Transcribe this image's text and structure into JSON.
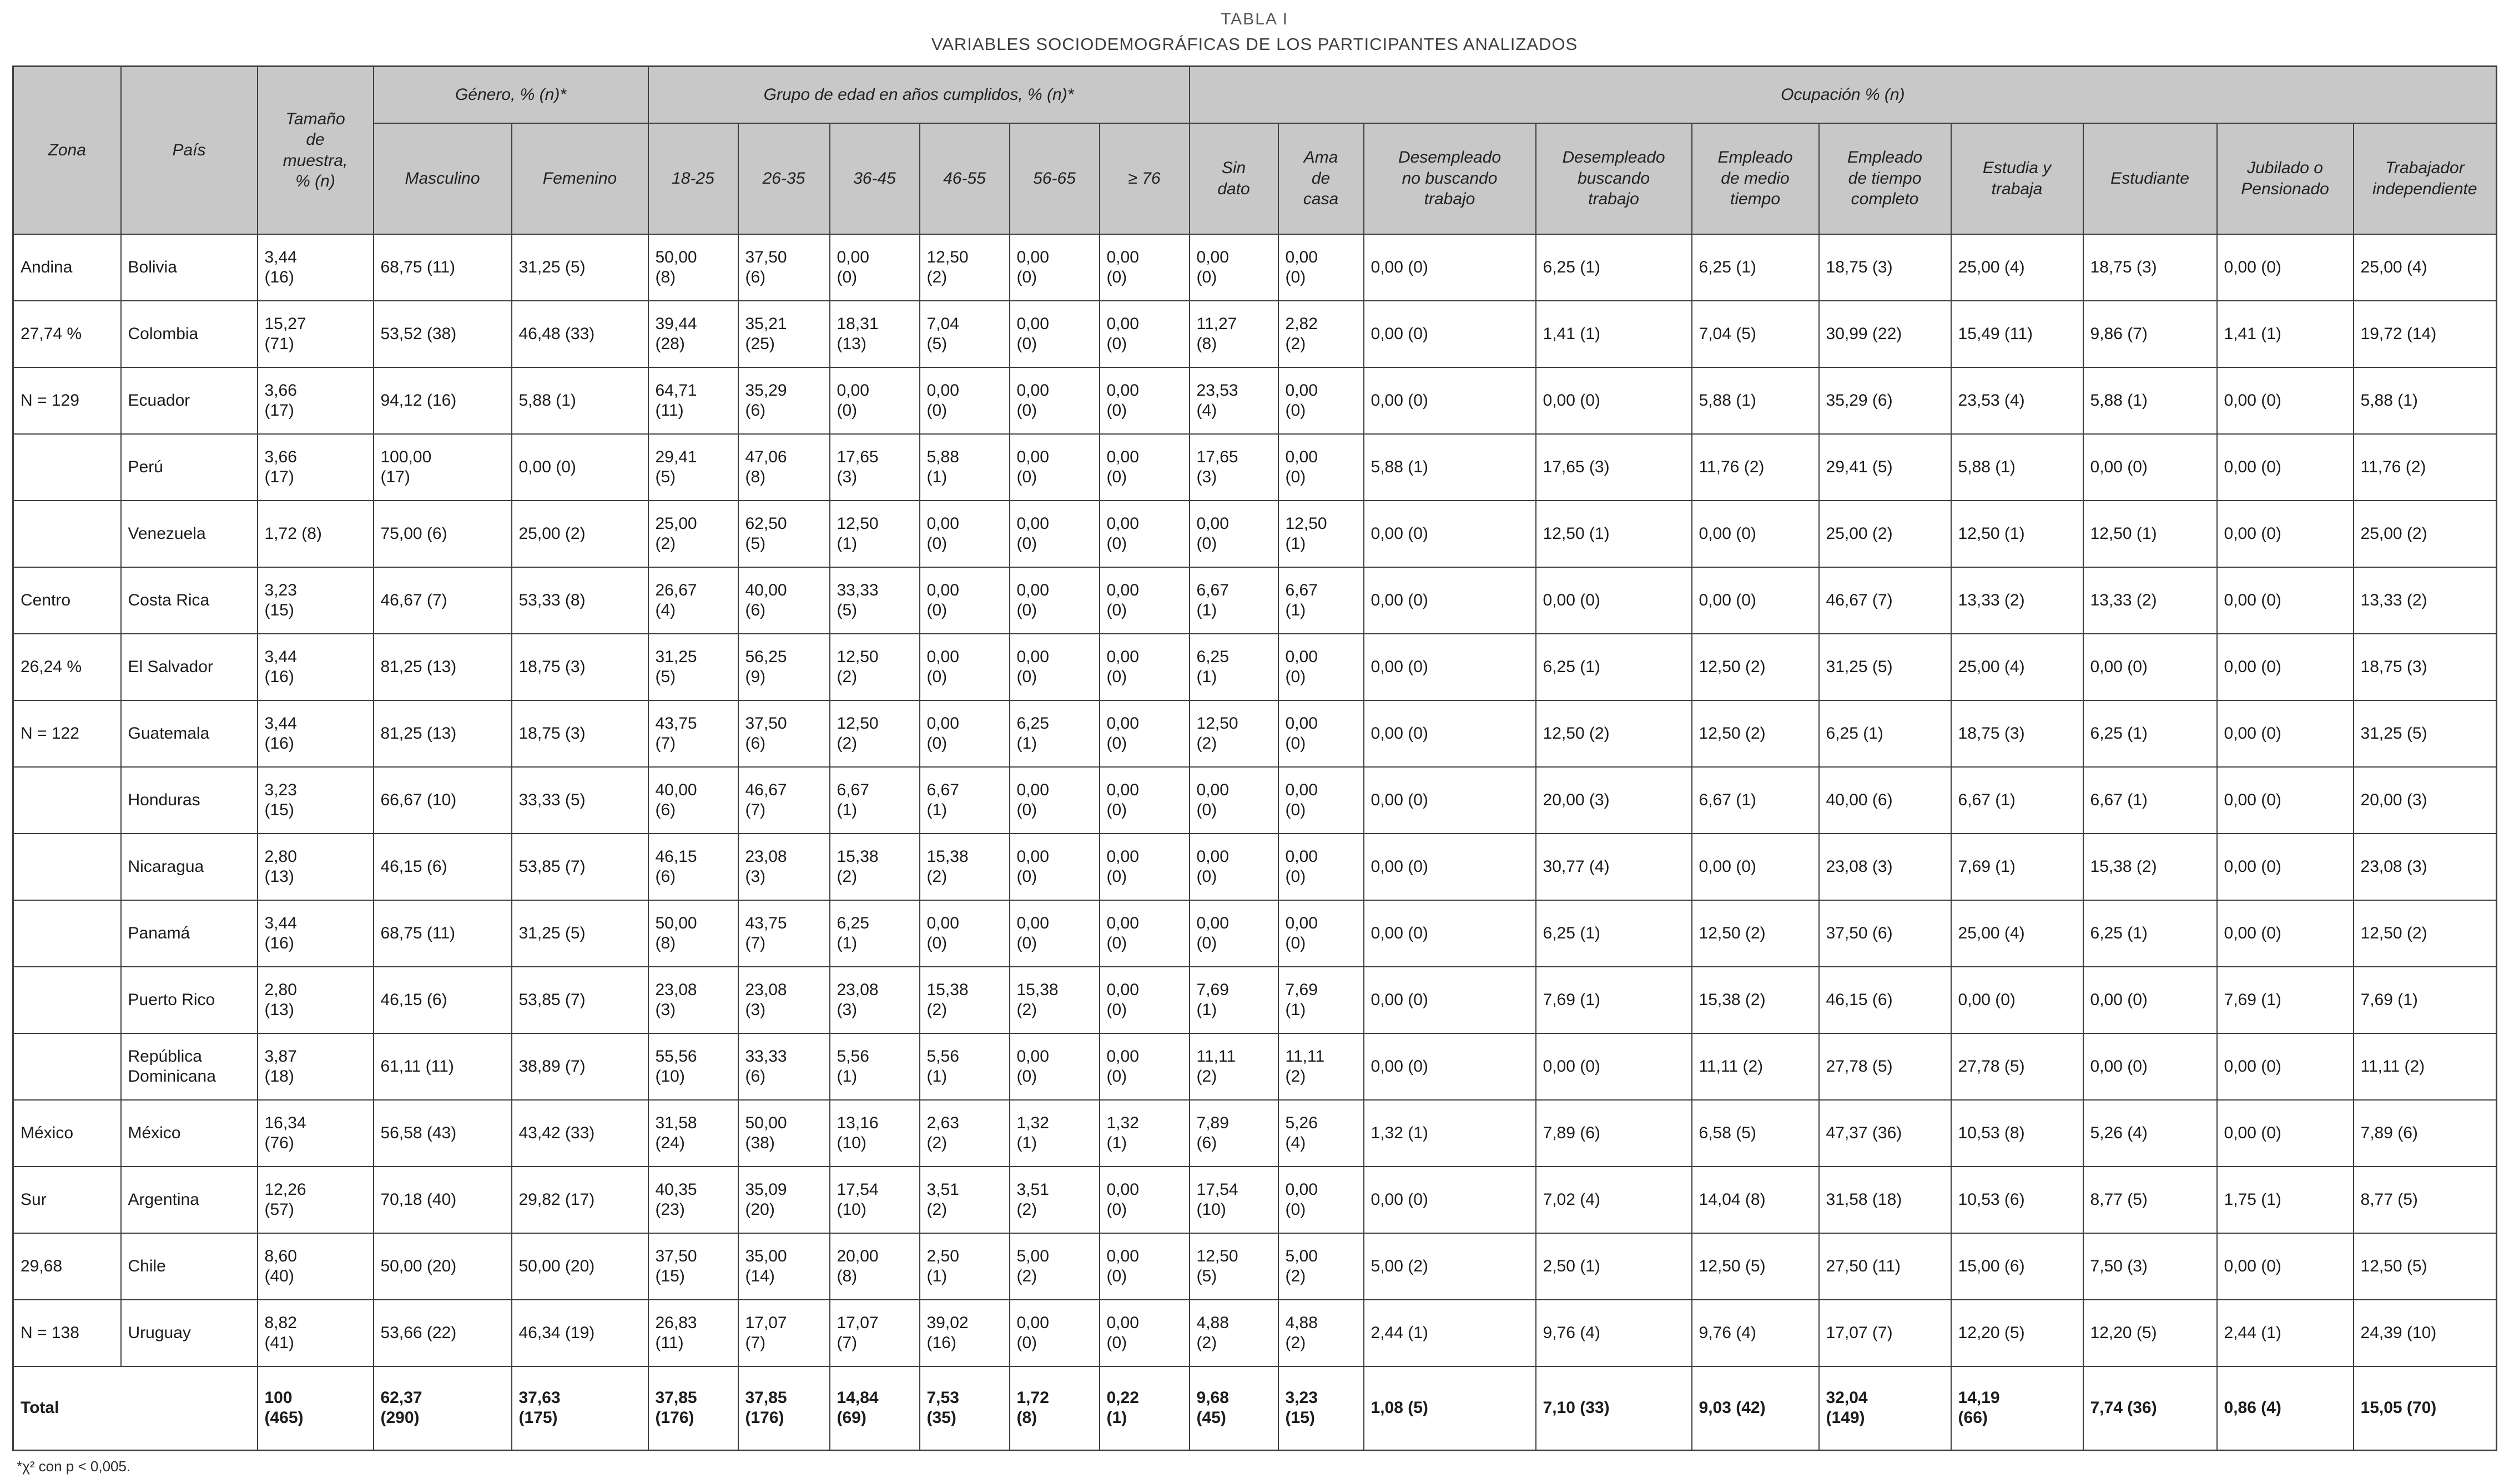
{
  "title": "TABLA I",
  "subtitle": "VARIABLES SOCIODEMOGRÁFICAS DE LOS PARTICIPANTES ANALIZADOS",
  "footnote": "*χ² con p < 0,005.",
  "header": {
    "zona": "Zona",
    "pais": "País",
    "tamano": "Tamaño\nde\nmuestra,\n% (n)",
    "genero_group": "Género, % (n)*",
    "genero_cols": [
      "Masculino",
      "Femenino"
    ],
    "edad_group": "Grupo de edad en años cumplidos, % (n)*",
    "edad_cols": [
      "18-25",
      "26-35",
      "36-45",
      "46-55",
      "56-65",
      "≥ 76"
    ],
    "ocupacion_group": "Ocupación % (n)",
    "ocupacion_cols": [
      "Sin\ndato",
      "Ama\nde\ncasa",
      "Desempleado\nno buscando\ntrabajo",
      "Desempleado\nbuscando\ntrabajo",
      "Empleado\nde medio\ntiempo",
      "Empleado\nde tiempo\ncompleto",
      "Estudia y\ntrabaja",
      "Estudiante",
      "Jubilado o\nPensionado",
      "Trabajador\nindependiente"
    ]
  },
  "rows": [
    {
      "zona": "Andina",
      "pais": "Bolivia",
      "cells": [
        "3,44\n(16)",
        "68,75 (11)",
        "31,25 (5)",
        "50,00\n(8)",
        "37,50\n(6)",
        "0,00\n(0)",
        "12,50\n(2)",
        "0,00\n(0)",
        "0,00\n(0)",
        "0,00\n(0)",
        "0,00\n(0)",
        "0,00 (0)",
        "6,25 (1)",
        "6,25 (1)",
        "18,75 (3)",
        "25,00 (4)",
        "18,75 (3)",
        "0,00 (0)",
        "25,00 (4)"
      ]
    },
    {
      "zona": "27,74 %",
      "pais": "Colombia",
      "cells": [
        "15,27\n(71)",
        "53,52 (38)",
        "46,48 (33)",
        "39,44\n(28)",
        "35,21\n(25)",
        "18,31\n(13)",
        "7,04\n(5)",
        "0,00\n(0)",
        "0,00\n(0)",
        "11,27\n(8)",
        "2,82\n(2)",
        "0,00 (0)",
        "1,41 (1)",
        "7,04 (5)",
        "30,99 (22)",
        "15,49 (11)",
        "9,86 (7)",
        "1,41 (1)",
        "19,72 (14)"
      ]
    },
    {
      "zona": "N = 129",
      "pais": "Ecuador",
      "cells": [
        "3,66\n(17)",
        "94,12 (16)",
        "5,88 (1)",
        "64,71\n(11)",
        "35,29\n(6)",
        "0,00\n(0)",
        "0,00\n(0)",
        "0,00\n(0)",
        "0,00\n(0)",
        "23,53\n(4)",
        "0,00\n(0)",
        "0,00 (0)",
        "0,00 (0)",
        "5,88 (1)",
        "35,29 (6)",
        "23,53 (4)",
        "5,88 (1)",
        "0,00 (0)",
        "5,88 (1)"
      ]
    },
    {
      "zona": "",
      "pais": "Perú",
      "cells": [
        "3,66\n(17)",
        "100,00\n(17)",
        "0,00 (0)",
        "29,41\n(5)",
        "47,06\n(8)",
        "17,65\n(3)",
        "5,88\n(1)",
        "0,00\n(0)",
        "0,00\n(0)",
        "17,65\n(3)",
        "0,00\n(0)",
        "5,88 (1)",
        "17,65 (3)",
        "11,76 (2)",
        "29,41 (5)",
        "5,88 (1)",
        "0,00 (0)",
        "0,00 (0)",
        "11,76 (2)"
      ]
    },
    {
      "zona": "",
      "pais": "Venezuela",
      "cells": [
        "1,72 (8)",
        "75,00 (6)",
        "25,00 (2)",
        "25,00\n(2)",
        "62,50\n(5)",
        "12,50\n(1)",
        "0,00\n(0)",
        "0,00\n(0)",
        "0,00\n(0)",
        "0,00\n(0)",
        "12,50\n(1)",
        "0,00 (0)",
        "12,50 (1)",
        "0,00 (0)",
        "25,00 (2)",
        "12,50 (1)",
        "12,50 (1)",
        "0,00 (0)",
        "25,00 (2)"
      ]
    },
    {
      "zona": "Centro",
      "pais": "Costa Rica",
      "cells": [
        "3,23\n(15)",
        "46,67 (7)",
        "53,33 (8)",
        "26,67\n(4)",
        "40,00\n(6)",
        "33,33\n(5)",
        "0,00\n(0)",
        "0,00\n(0)",
        "0,00\n(0)",
        "6,67\n(1)",
        "6,67\n(1)",
        "0,00 (0)",
        "0,00 (0)",
        "0,00 (0)",
        "46,67 (7)",
        "13,33 (2)",
        "13,33 (2)",
        "0,00 (0)",
        "13,33 (2)"
      ]
    },
    {
      "zona": "26,24 %",
      "pais": "El Salvador",
      "cells": [
        "3,44\n(16)",
        "81,25 (13)",
        "18,75 (3)",
        "31,25\n(5)",
        "56,25\n(9)",
        "12,50\n(2)",
        "0,00\n(0)",
        "0,00\n(0)",
        "0,00\n(0)",
        "6,25\n(1)",
        "0,00\n(0)",
        "0,00 (0)",
        "6,25 (1)",
        "12,50 (2)",
        "31,25 (5)",
        "25,00 (4)",
        "0,00 (0)",
        "0,00 (0)",
        "18,75 (3)"
      ]
    },
    {
      "zona": "N = 122",
      "pais": "Guatemala",
      "cells": [
        "3,44\n(16)",
        "81,25 (13)",
        "18,75 (3)",
        "43,75\n(7)",
        "37,50\n(6)",
        "12,50\n(2)",
        "0,00\n(0)",
        "6,25\n(1)",
        "0,00\n(0)",
        "12,50\n(2)",
        "0,00\n(0)",
        "0,00 (0)",
        "12,50 (2)",
        "12,50 (2)",
        "6,25 (1)",
        "18,75 (3)",
        "6,25 (1)",
        "0,00 (0)",
        "31,25 (5)"
      ]
    },
    {
      "zona": "",
      "pais": "Honduras",
      "cells": [
        "3,23\n(15)",
        "66,67 (10)",
        "33,33 (5)",
        "40,00\n(6)",
        "46,67\n(7)",
        "6,67\n(1)",
        "6,67\n(1)",
        "0,00\n(0)",
        "0,00\n(0)",
        "0,00\n(0)",
        "0,00\n(0)",
        "0,00 (0)",
        "20,00 (3)",
        "6,67 (1)",
        "40,00 (6)",
        "6,67 (1)",
        "6,67 (1)",
        "0,00 (0)",
        "20,00 (3)"
      ]
    },
    {
      "zona": "",
      "pais": "Nicaragua",
      "cells": [
        "2,80\n(13)",
        "46,15 (6)",
        "53,85 (7)",
        "46,15\n(6)",
        "23,08\n(3)",
        "15,38\n(2)",
        "15,38\n(2)",
        "0,00\n(0)",
        "0,00\n(0)",
        "0,00\n(0)",
        "0,00\n(0)",
        "0,00 (0)",
        "30,77 (4)",
        "0,00 (0)",
        "23,08 (3)",
        "7,69 (1)",
        "15,38 (2)",
        "0,00 (0)",
        "23,08 (3)"
      ]
    },
    {
      "zona": "",
      "pais": "Panamá",
      "cells": [
        "3,44\n(16)",
        "68,75 (11)",
        "31,25 (5)",
        "50,00\n(8)",
        "43,75\n(7)",
        "6,25\n(1)",
        "0,00\n(0)",
        "0,00\n(0)",
        "0,00\n(0)",
        "0,00\n(0)",
        "0,00\n(0)",
        "0,00 (0)",
        "6,25 (1)",
        "12,50 (2)",
        "37,50 (6)",
        "25,00 (4)",
        "6,25 (1)",
        "0,00 (0)",
        "12,50 (2)"
      ]
    },
    {
      "zona": "",
      "pais": "Puerto Rico",
      "cells": [
        "2,80\n(13)",
        "46,15 (6)",
        "53,85 (7)",
        "23,08\n(3)",
        "23,08\n(3)",
        "23,08\n(3)",
        "15,38\n(2)",
        "15,38\n(2)",
        "0,00\n(0)",
        "7,69\n(1)",
        "7,69\n(1)",
        "0,00 (0)",
        "7,69 (1)",
        "15,38 (2)",
        "46,15 (6)",
        "0,00 (0)",
        "0,00 (0)",
        "7,69 (1)",
        "7,69 (1)"
      ]
    },
    {
      "zona": "",
      "pais": "República Dominicana",
      "cells": [
        "3,87\n(18)",
        "61,11 (11)",
        "38,89 (7)",
        "55,56\n(10)",
        "33,33\n(6)",
        "5,56\n(1)",
        "5,56\n(1)",
        "0,00\n(0)",
        "0,00\n(0)",
        "11,11\n(2)",
        "11,11\n(2)",
        "0,00 (0)",
        "0,00 (0)",
        "11,11 (2)",
        "27,78 (5)",
        "27,78 (5)",
        "0,00 (0)",
        "0,00 (0)",
        "11,11 (2)"
      ]
    },
    {
      "zona": "México",
      "pais": "México",
      "cells": [
        "16,34\n(76)",
        "56,58 (43)",
        "43,42 (33)",
        "31,58\n(24)",
        "50,00\n(38)",
        "13,16\n(10)",
        "2,63\n(2)",
        "1,32\n(1)",
        "1,32\n(1)",
        "7,89\n(6)",
        "5,26\n(4)",
        "1,32 (1)",
        "7,89 (6)",
        "6,58 (5)",
        "47,37 (36)",
        "10,53 (8)",
        "5,26 (4)",
        "0,00 (0)",
        "7,89 (6)"
      ]
    },
    {
      "zona": "Sur",
      "pais": "Argentina",
      "cells": [
        "12,26\n(57)",
        "70,18 (40)",
        "29,82 (17)",
        "40,35\n(23)",
        "35,09\n(20)",
        "17,54\n(10)",
        "3,51\n(2)",
        "3,51\n(2)",
        "0,00\n(0)",
        "17,54\n(10)",
        "0,00\n(0)",
        "0,00 (0)",
        "7,02 (4)",
        "14,04 (8)",
        "31,58 (18)",
        "10,53 (6)",
        "8,77 (5)",
        "1,75 (1)",
        "8,77 (5)"
      ]
    },
    {
      "zona": "29,68",
      "pais": "Chile",
      "cells": [
        "8,60\n(40)",
        "50,00 (20)",
        "50,00 (20)",
        "37,50\n(15)",
        "35,00\n(14)",
        "20,00\n(8)",
        "2,50\n(1)",
        "5,00\n(2)",
        "0,00\n(0)",
        "12,50\n(5)",
        "5,00\n(2)",
        "5,00 (2)",
        "2,50 (1)",
        "12,50 (5)",
        "27,50 (11)",
        "15,00 (6)",
        "7,50 (3)",
        "0,00 (0)",
        "12,50 (5)"
      ]
    },
    {
      "zona": "N = 138",
      "pais": "Uruguay",
      "cells": [
        "8,82\n(41)",
        "53,66 (22)",
        "46,34 (19)",
        "26,83\n(11)",
        "17,07\n(7)",
        "17,07\n(7)",
        "39,02\n(16)",
        "0,00\n(0)",
        "0,00\n(0)",
        "4,88\n(2)",
        "4,88\n(2)",
        "2,44 (1)",
        "9,76 (4)",
        "9,76 (4)",
        "17,07 (7)",
        "12,20 (5)",
        "12,20 (5)",
        "2,44 (1)",
        "24,39 (10)"
      ]
    }
  ],
  "total": {
    "label": "Total",
    "cells": [
      "100\n(465)",
      "62,37\n(290)",
      "37,63\n(175)",
      "37,85\n(176)",
      "37,85\n(176)",
      "14,84\n(69)",
      "7,53\n(35)",
      "1,72\n(8)",
      "0,22\n(1)",
      "9,68\n(45)",
      "3,23\n(15)",
      "1,08 (5)",
      "7,10 (33)",
      "9,03 (42)",
      "32,04\n(149)",
      "14,19\n(66)",
      "7,74 (36)",
      "0,86 (4)",
      "15,05 (70)"
    ]
  }
}
